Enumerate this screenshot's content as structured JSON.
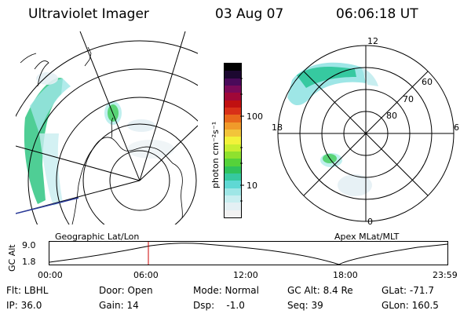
{
  "header": {
    "instrument": "Ultraviolet Imager",
    "date": "03 Aug 07",
    "time": "06:06:18 UT"
  },
  "colorbar": {
    "unit_label": "photon cm⁻²s⁻¹",
    "ticks": [
      "100",
      "10"
    ],
    "colors": [
      "#f2f2f2",
      "#e4f0f4",
      "#c8eef0",
      "#9ee6e6",
      "#5fd8d4",
      "#36c9a0",
      "#2fc25c",
      "#55d23a",
      "#8fe12e",
      "#c8ee30",
      "#f2f23a",
      "#f2c43a",
      "#f09a2a",
      "#e8681c",
      "#d83018",
      "#c01010",
      "#a00838",
      "#7a0a58",
      "#4a0a5a",
      "#1c0830",
      "#000000"
    ]
  },
  "left_map": {
    "label": "Geographic Lat/Lon"
  },
  "right_map": {
    "label": "Apex MLat/MLT",
    "mlt_labels": [
      "12",
      "18",
      "6",
      "0"
    ],
    "lat_labels": [
      "60",
      "70",
      "80"
    ]
  },
  "altitude_plot": {
    "ylabel": "GC Alt",
    "yticks": [
      "9.0",
      "1.8"
    ],
    "xticks": [
      "00:00",
      "06:00",
      "12:00",
      "18:00",
      "23:59"
    ],
    "marker_color": "#cc0000"
  },
  "info": {
    "rows": [
      [
        "Flt: LBHL",
        "Door: Open",
        "Mode: Normal",
        "GC Alt: 8.4 Re",
        "GLat: -71.7"
      ],
      [
        "IP: 36.0",
        "Gain: 14",
        "Dsp:    -1.0",
        "Seq: 39",
        "GLon: 160.5"
      ]
    ]
  }
}
